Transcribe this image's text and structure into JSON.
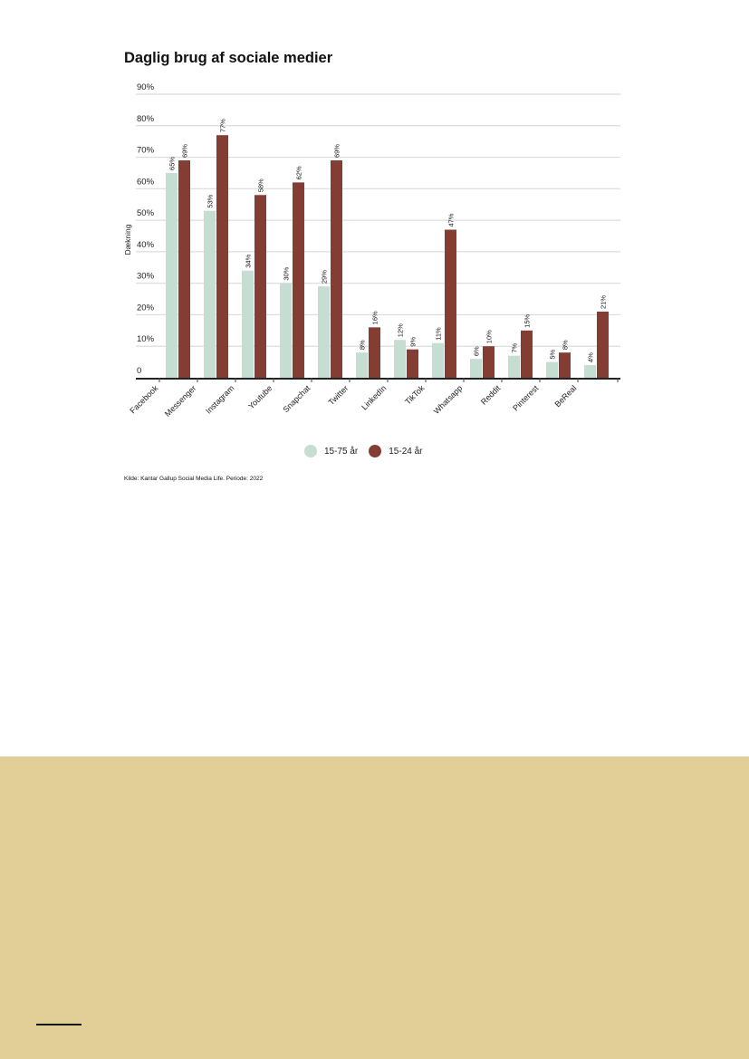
{
  "chart_data": {
    "type": "bar",
    "title": "Daglig brug af sociale medier",
    "ylabel": "Dækning",
    "xlabel": "",
    "ylim": [
      0,
      90
    ],
    "yticks": [
      "0",
      "10%",
      "20%",
      "30%",
      "40%",
      "50%",
      "60%",
      "70%",
      "80%",
      "90%"
    ],
    "grid": true,
    "legend_placement": "bottom",
    "categories": [
      "Facebook",
      "Messenger",
      "Instagram",
      "Youtube",
      "Snapchat",
      "Twitter",
      "LinkedIn",
      "TikTok",
      "Whatsapp",
      "Reddit",
      "Pinterest",
      "BeReal"
    ],
    "series": [
      {
        "name": "15-75 år",
        "color": "#c6ddd1",
        "values": [
          65,
          53,
          34,
          30,
          29,
          8,
          12,
          11,
          6,
          7,
          5,
          4
        ]
      },
      {
        "name": "15-24 år",
        "color": "#843d33",
        "values": [
          69,
          77,
          58,
          62,
          69,
          16,
          9,
          47,
          10,
          15,
          8,
          21
        ]
      }
    ],
    "source": "Kilde: Kantar Gallup Social Media Life. Periode: 2022"
  },
  "colors": {
    "footer_band": "#e2cf98"
  }
}
